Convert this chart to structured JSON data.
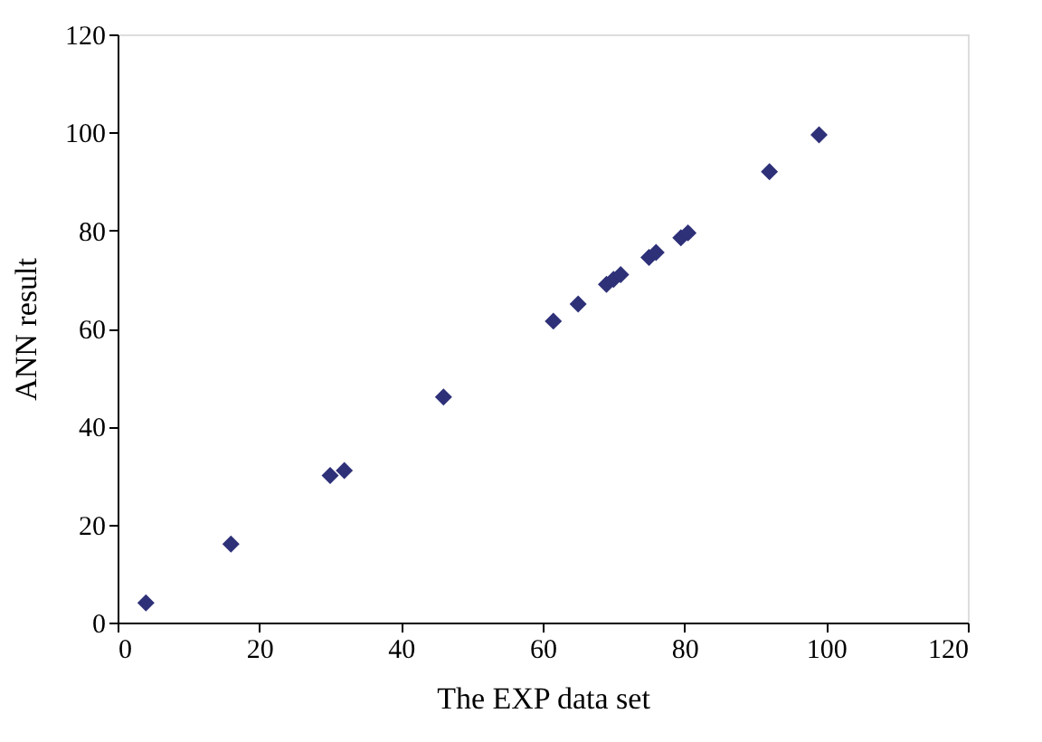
{
  "chart_data": {
    "type": "scatter",
    "xlabel": "The EXP data set",
    "ylabel": "ANN result",
    "x": [
      4,
      16,
      30,
      32,
      46,
      61.5,
      65,
      69,
      70,
      71,
      75,
      76,
      79.5,
      80.5,
      92,
      99
    ],
    "series": [
      {
        "color": "#2e3078",
        "values": [
          4,
          16,
          30,
          31,
          46,
          61.5,
          65,
          69,
          70,
          71,
          74.5,
          75.5,
          78.5,
          79.5,
          92,
          99.5
        ]
      }
    ],
    "xlim": [
      0,
      120
    ],
    "ylim": [
      0,
      120
    ],
    "xticks": [
      0,
      20,
      40,
      60,
      80,
      100,
      120
    ],
    "yticks": [
      0,
      20,
      40,
      60,
      80,
      100,
      120
    ],
    "marker": "diamond",
    "grid": false
  }
}
